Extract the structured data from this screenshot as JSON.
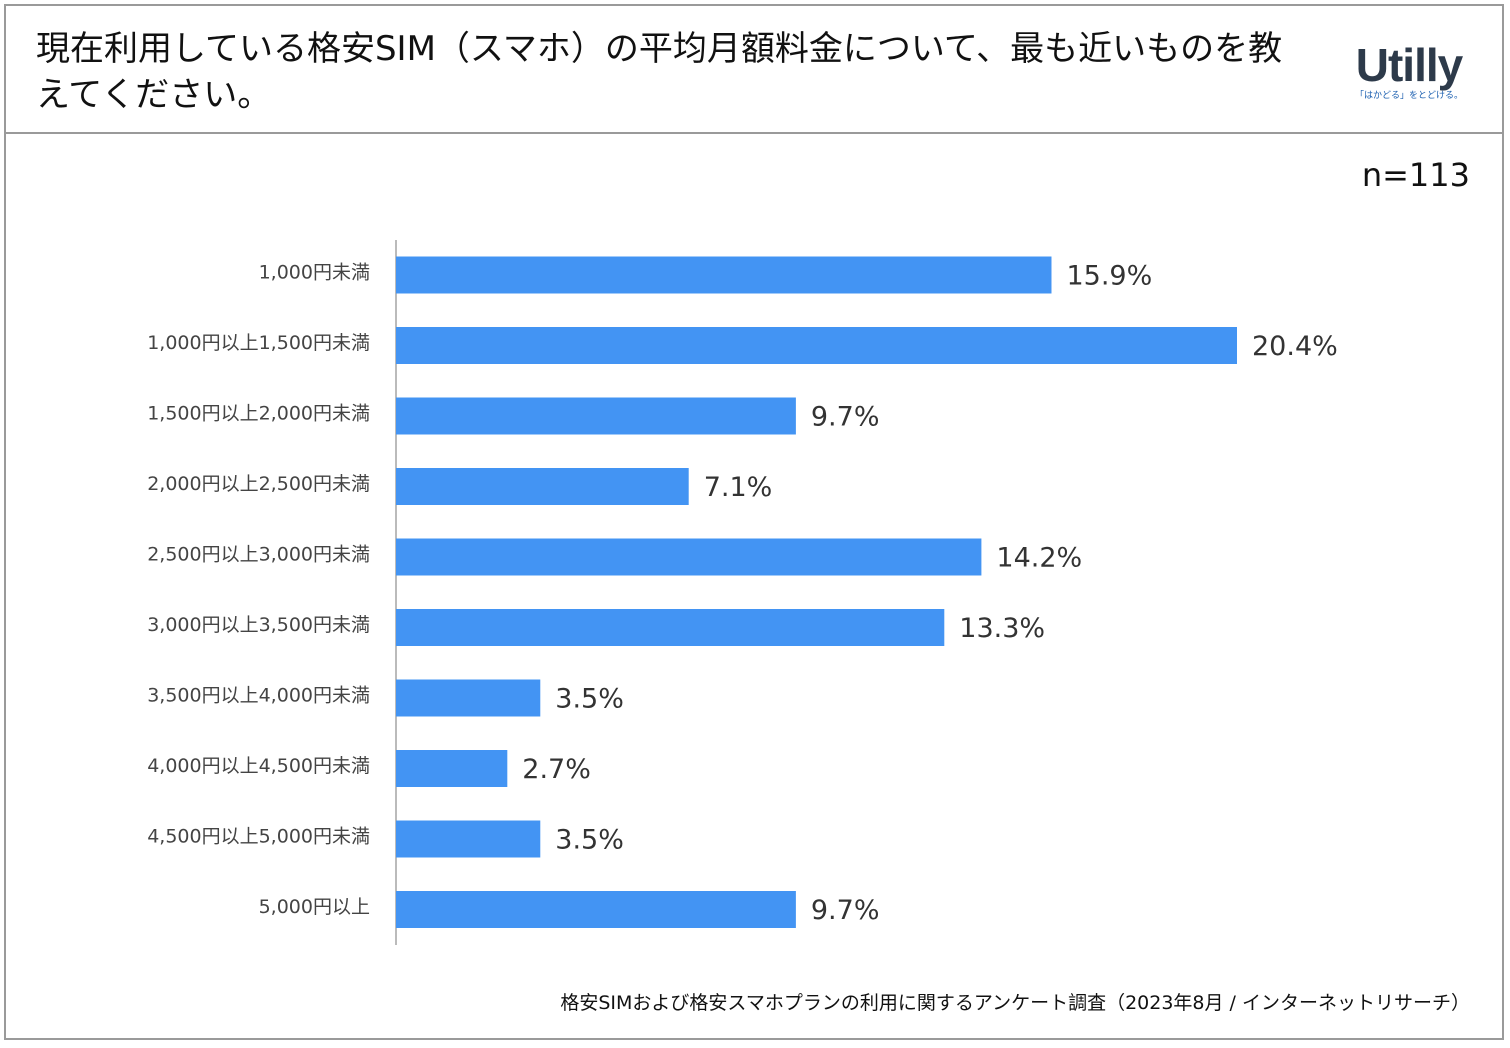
{
  "title": "現在利用している格安SIM（スマホ）の平均月額料金について、最も近いものを教えてください。",
  "logo": {
    "name": "Utilly",
    "tagline": "「はかどる」をとどける。"
  },
  "sample_size": "n=113",
  "source": "格安SIMおよび格安スマホプランの利用に関するアンケート調査（2023年8月 / インターネットリサーチ）",
  "colors": {
    "bar": "#4394f3",
    "axis": "#bbbbbb"
  },
  "chart_data": {
    "type": "bar",
    "orientation": "horizontal",
    "categories": [
      "1,000円未満",
      "1,000円以上1,500円未満",
      "1,500円以上2,000円未満",
      "2,000円以上2,500円未満",
      "2,500円以上3,000円未満",
      "3,000円以上3,500円未満",
      "3,500円以上4,000円未満",
      "4,000円以上4,500円未満",
      "4,500円以上5,000円未満",
      "5,000円以上"
    ],
    "values": [
      15.9,
      20.4,
      9.7,
      7.1,
      14.2,
      13.3,
      3.5,
      2.7,
      3.5,
      9.7
    ],
    "value_labels": [
      "15.9%",
      "20.4%",
      "9.7%",
      "7.1%",
      "14.2%",
      "13.3%",
      "3.5%",
      "2.7%",
      "3.5%",
      "9.7%"
    ],
    "unit": "%",
    "xlim": [
      0,
      20.4
    ],
    "grid": false,
    "legend": "none"
  }
}
